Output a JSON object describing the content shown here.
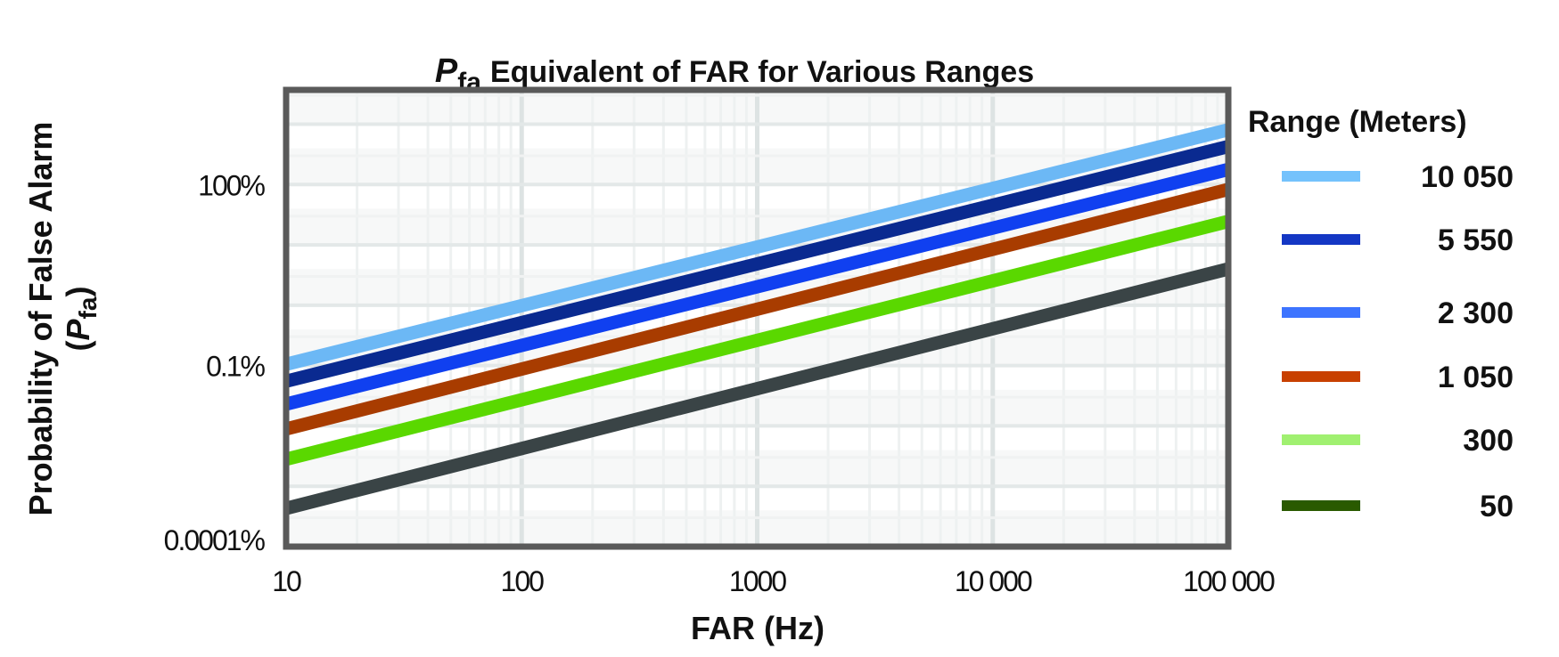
{
  "chart_data": {
    "type": "line",
    "title_symbol": "P",
    "title_subscript": "fa",
    "title": "Equivalent of FAR for Various Ranges",
    "xlabel": "FAR (Hz)",
    "ylabel_line1": "Probability of False Alarm",
    "ylabel_line2_open": "(",
    "ylabel_line2_symbol": "P",
    "ylabel_line2_subscript": "fa",
    "ylabel_line2_close": ")",
    "x_scale": "log",
    "y_scale": "log",
    "xlim": [
      10,
      100000
    ],
    "ylim_percent": [
      0.0001,
      3700
    ],
    "x_ticks": [
      {
        "value": 10,
        "label": "10"
      },
      {
        "value": 100,
        "label": "100"
      },
      {
        "value": 1000,
        "label": "1000"
      },
      {
        "value": 10000,
        "label": "10 000"
      },
      {
        "value": 100000,
        "label": "100 000"
      }
    ],
    "y_ticks": [
      {
        "value": 100,
        "label": "100%"
      },
      {
        "value": 0.1,
        "label": "0.1%"
      },
      {
        "value": 0.0001,
        "label": "0.0001%"
      }
    ],
    "grid": true,
    "legend": {
      "title": "Range (Meters)",
      "placement": "right"
    },
    "series": [
      {
        "name": "10 050",
        "color": "#6cb8f5",
        "legend_color": "#74c2fc",
        "x": [
          10,
          100000
        ],
        "y_percent": [
          0.105,
          810
        ]
      },
      {
        "name": "5 550",
        "color": "#0a2a90",
        "legend_color": "#1437c4",
        "x": [
          10,
          100000
        ],
        "y_percent": [
          0.055,
          427
        ]
      },
      {
        "name": "2 300",
        "color": "#1040f0",
        "legend_color": "#3d74ff",
        "x": [
          10,
          100000
        ],
        "y_percent": [
          0.023,
          178
        ]
      },
      {
        "name": "1 050",
        "color": "#a83c00",
        "legend_color": "#c84000",
        "x": [
          10,
          100000
        ],
        "y_percent": [
          0.0089,
          83
        ]
      },
      {
        "name": "300",
        "color": "#5ad800",
        "legend_color": "#a0f070",
        "x": [
          10,
          100000
        ],
        "y_percent": [
          0.0028,
          24.5
        ]
      },
      {
        "name": "50",
        "color": "#3a4446",
        "legend_color": "#2a5a00",
        "x": [
          10,
          100000
        ],
        "y_percent": [
          0.00043,
          4
        ]
      }
    ]
  }
}
